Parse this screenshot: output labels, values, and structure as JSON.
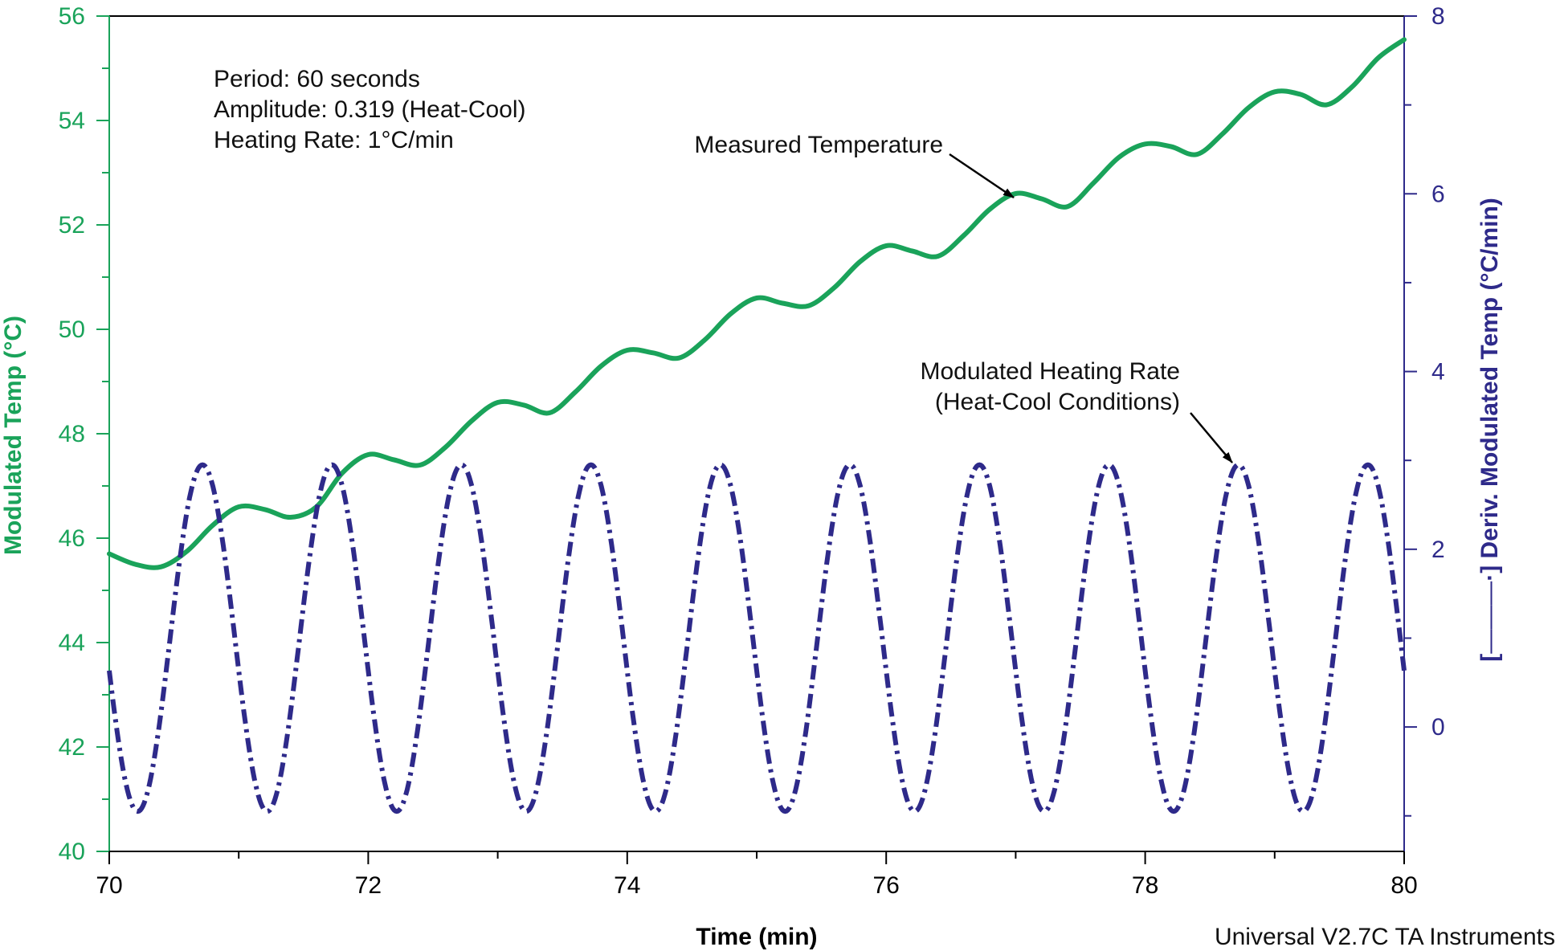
{
  "chart_data": {
    "type": "line",
    "title": "",
    "xlabel": "Time (min)",
    "ylabel_left": "Modulated Temp (°C)",
    "ylabel_right": "Deriv. Modulated Temp (°C/min)",
    "ylabel_right_prefix": "[",
    "ylabel_right_marker": "———",
    "ylabel_right_marker_end": "·]",
    "xlim": [
      70,
      80
    ],
    "x_ticks": [
      70,
      72,
      74,
      76,
      78,
      80
    ],
    "ylim_left": [
      40,
      56
    ],
    "y_ticks_left": [
      40,
      42,
      44,
      46,
      48,
      50,
      52,
      54,
      56
    ],
    "ylim_right": [
      -1.4,
      8
    ],
    "y_ticks_right": [
      0,
      2,
      4,
      6,
      8
    ],
    "grid": false,
    "colors": {
      "temperature": "#1aa35a",
      "heating_rate": "#2e2a8a",
      "left_axis": "#1aa35a",
      "right_axis": "#2e2a8a",
      "frame": "#000000"
    },
    "series": [
      {
        "name": "Measured Temperature",
        "axis": "left",
        "style": "solid",
        "x": [
          70.0,
          70.2,
          70.4,
          70.6,
          70.8,
          71.0,
          71.2,
          71.4,
          71.6,
          71.8,
          72.0,
          72.2,
          72.4,
          72.6,
          72.8,
          73.0,
          73.2,
          73.4,
          73.6,
          73.8,
          74.0,
          74.2,
          74.4,
          74.6,
          74.8,
          75.0,
          75.2,
          75.4,
          75.6,
          75.8,
          76.0,
          76.2,
          76.4,
          76.6,
          76.8,
          77.0,
          77.2,
          77.4,
          77.6,
          77.8,
          78.0,
          78.2,
          78.4,
          78.6,
          78.8,
          79.0,
          79.2,
          79.4,
          79.6,
          79.8,
          80.0
        ],
        "y": [
          45.7,
          45.5,
          45.45,
          45.75,
          46.25,
          46.6,
          46.55,
          46.4,
          46.6,
          47.25,
          47.6,
          47.5,
          47.4,
          47.75,
          48.25,
          48.6,
          48.55,
          48.4,
          48.8,
          49.3,
          49.6,
          49.55,
          49.45,
          49.8,
          50.3,
          50.6,
          50.5,
          50.45,
          50.8,
          51.3,
          51.6,
          51.5,
          51.4,
          51.8,
          52.3,
          52.6,
          52.5,
          52.35,
          52.8,
          53.3,
          53.55,
          53.5,
          53.35,
          53.75,
          54.25,
          54.55,
          54.5,
          54.3,
          54.65,
          55.2,
          55.55
        ]
      },
      {
        "name": "Modulated Heating Rate (Heat-Cool Conditions)",
        "axis": "right",
        "style": "dash-dot",
        "function": "1 + 1.95*cos(2*pi*(t - 70.72))",
        "mean": 1.0,
        "amplitude": 1.95,
        "period_min": 1.0,
        "first_peak_x": 70.72,
        "max": 2.95,
        "min": -0.95
      }
    ],
    "annotations": {
      "info_lines": [
        "Period: 60 seconds",
        "Amplitude: 0.319 (Heat-Cool)",
        "Heating Rate: 1°C/min"
      ],
      "measured_label": "Measured Temperature",
      "rate_label_line1": "Modulated Heating Rate",
      "rate_label_line2": "(Heat-Cool Conditions)"
    },
    "footer": "Universal V2.7C TA Instruments"
  }
}
